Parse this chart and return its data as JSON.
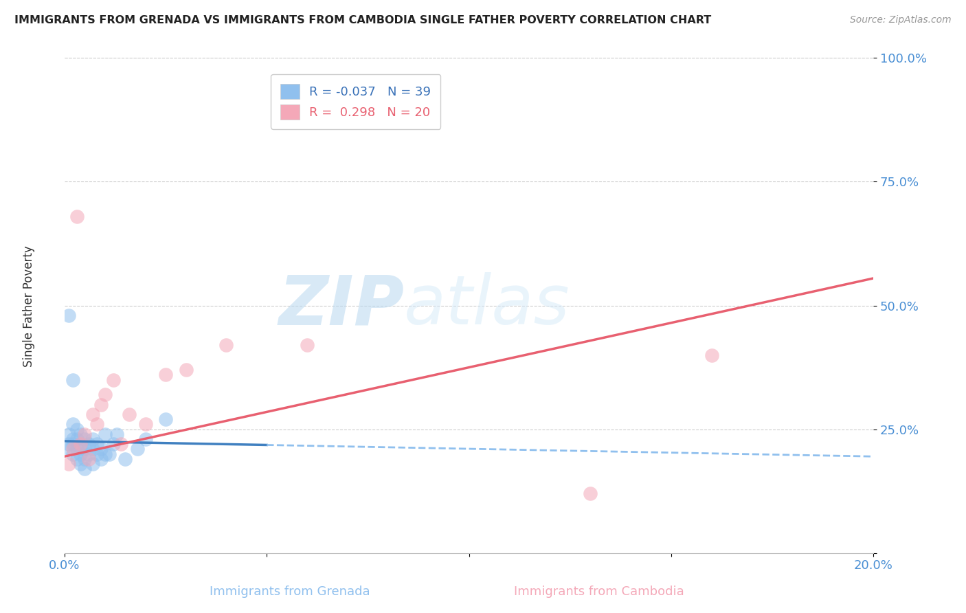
{
  "title": "IMMIGRANTS FROM GRENADA VS IMMIGRANTS FROM CAMBODIA SINGLE FATHER POVERTY CORRELATION CHART",
  "source": "Source: ZipAtlas.com",
  "xlabel_grenada": "Immigrants from Grenada",
  "xlabel_cambodia": "Immigrants from Cambodia",
  "ylabel": "Single Father Poverty",
  "R_grenada": -0.037,
  "N_grenada": 39,
  "R_cambodia": 0.298,
  "N_cambodia": 20,
  "color_grenada": "#90C0EE",
  "color_cambodia": "#F4A8B8",
  "trendline_grenada_solid_color": "#4080C0",
  "trendline_grenada_dash_color": "#90C0EE",
  "trendline_cambodia_color": "#E86070",
  "background_color": "#ffffff",
  "watermark_zip": "ZIP",
  "watermark_atlas": "atlas",
  "xlim": [
    0.0,
    0.2
  ],
  "ylim": [
    0.0,
    1.0
  ],
  "xticks": [
    0.0,
    0.05,
    0.1,
    0.15,
    0.2
  ],
  "yticks": [
    0.0,
    0.25,
    0.5,
    0.75,
    1.0
  ],
  "grenada_x": [
    0.001,
    0.001,
    0.001,
    0.002,
    0.002,
    0.002,
    0.002,
    0.003,
    0.003,
    0.003,
    0.003,
    0.004,
    0.004,
    0.004,
    0.004,
    0.005,
    0.005,
    0.005,
    0.005,
    0.006,
    0.006,
    0.007,
    0.007,
    0.007,
    0.008,
    0.008,
    0.009,
    0.009,
    0.01,
    0.01,
    0.011,
    0.012,
    0.013,
    0.015,
    0.018,
    0.02,
    0.025,
    0.001,
    0.002
  ],
  "grenada_y": [
    0.21,
    0.22,
    0.24,
    0.2,
    0.22,
    0.23,
    0.26,
    0.19,
    0.21,
    0.23,
    0.25,
    0.18,
    0.2,
    0.22,
    0.24,
    0.17,
    0.19,
    0.21,
    0.23,
    0.2,
    0.22,
    0.18,
    0.21,
    0.23,
    0.2,
    0.22,
    0.19,
    0.21,
    0.2,
    0.24,
    0.2,
    0.22,
    0.24,
    0.19,
    0.21,
    0.23,
    0.27,
    0.48,
    0.35
  ],
  "cambodia_x": [
    0.001,
    0.002,
    0.003,
    0.004,
    0.005,
    0.006,
    0.007,
    0.008,
    0.009,
    0.01,
    0.012,
    0.014,
    0.016,
    0.02,
    0.025,
    0.03,
    0.04,
    0.06,
    0.13,
    0.16
  ],
  "cambodia_y": [
    0.18,
    0.21,
    0.68,
    0.22,
    0.24,
    0.19,
    0.28,
    0.26,
    0.3,
    0.32,
    0.35,
    0.22,
    0.28,
    0.26,
    0.36,
    0.37,
    0.42,
    0.42,
    0.12,
    0.4
  ],
  "grenada_trend_x0": 0.0,
  "grenada_trend_y0": 0.226,
  "grenada_trend_x1": 0.2,
  "grenada_trend_y1": 0.195,
  "cambodia_trend_x0": 0.0,
  "cambodia_trend_y0": 0.195,
  "cambodia_trend_x1": 0.2,
  "cambodia_trend_y1": 0.555
}
